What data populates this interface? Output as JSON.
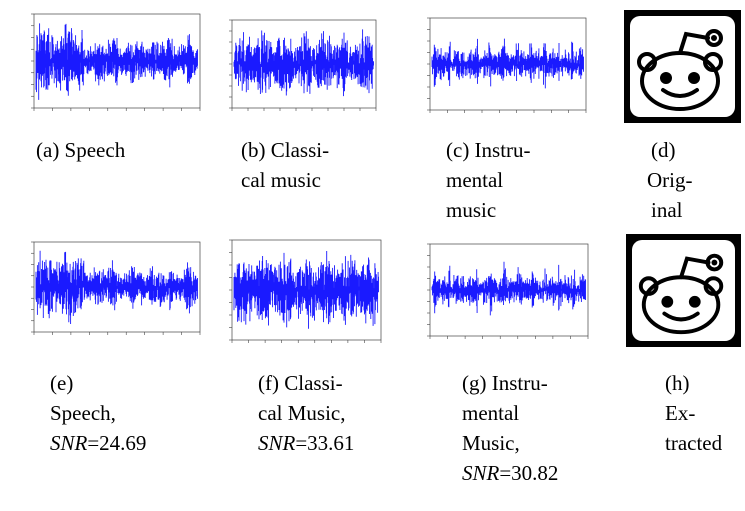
{
  "figure": {
    "row1": [
      {
        "id": "a",
        "caption_lines": [
          "(a) Speech"
        ]
      },
      {
        "id": "b",
        "caption_lines": [
          "(b) Classi-",
          "cal music"
        ]
      },
      {
        "id": "c",
        "caption_lines": [
          "(c)  Instru-",
          "mental",
          "music"
        ]
      },
      {
        "id": "d",
        "caption_lines": [
          "(d)",
          "Orig-",
          "inal"
        ]
      }
    ],
    "row2": [
      {
        "id": "e",
        "caption_lines": [
          "(e)",
          "Speech,"
        ],
        "snr_label": "SNR",
        "snr_value": "=24.69"
      },
      {
        "id": "f",
        "caption_lines": [
          "(f)  Classi-",
          "cal Music,"
        ],
        "snr_label": "SNR",
        "snr_value": "=33.61"
      },
      {
        "id": "g",
        "caption_lines": [
          "(g)  Instru-",
          "mental",
          "Music,"
        ],
        "snr_label": "SNR",
        "snr_value": "=30.82"
      },
      {
        "id": "h",
        "caption_lines": [
          "(h)",
          "Ex-",
          "tracted"
        ]
      }
    ]
  },
  "colors": {
    "waveform": "#1a1aff",
    "axis": "#444444",
    "logo_frame": "#000000"
  },
  "icons": [
    "reddit-alien-logo"
  ]
}
